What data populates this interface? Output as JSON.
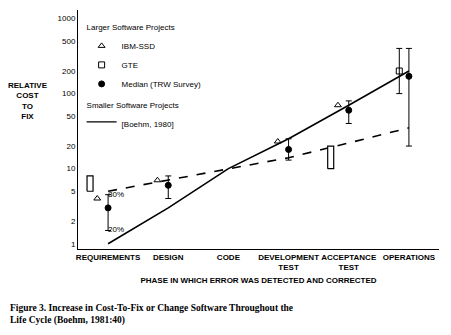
{
  "chart_data": {
    "type": "line",
    "caption": [
      "Figure 3. Increase in Cost-To-Fix or Change Software Throughout the",
      "Life Cycle (Boehm, 1981:40)"
    ],
    "x_label": "PHASE IN WHICH ERROR WAS DETECTED AND CORRECTED",
    "y_label": "RELATIVE COST TO FIX",
    "categories": [
      "REQUIREMENTS",
      "DESIGN",
      "CODE",
      "DEVELOPMENT TEST",
      "ACCEPTANCE TEST",
      "OPERATIONS"
    ],
    "log": "y",
    "ylim": [
      0.85,
      1300
    ],
    "yticks": [
      1,
      2,
      5,
      10,
      20,
      50,
      100,
      200,
      500,
      1000
    ],
    "grid": false,
    "legend": "top left",
    "series": [
      {
        "name": "Larger Software Projects",
        "type": "line",
        "line_style": "solid",
        "color": "#000000",
        "values": [
          1,
          3,
          10,
          25,
          70,
          200
        ]
      },
      {
        "name": "IBM-SSD",
        "group": "Larger Software Projects",
        "type": "scatter",
        "marker": "triangle-up-open",
        "color": "#000000",
        "values": [
          4,
          7,
          null,
          23,
          70,
          null
        ]
      },
      {
        "name": "GTE",
        "group": "Larger Software Projects",
        "type": "scatter",
        "marker": "square-open",
        "color": "#000000",
        "values": [
          null,
          null,
          null,
          null,
          null,
          200
        ],
        "low": [
          null,
          null,
          null,
          null,
          null,
          100
        ],
        "high": [
          null,
          null,
          null,
          null,
          null,
          400
        ]
      },
      {
        "name": "Median (TRW Survey)",
        "group": "Larger Software Projects",
        "type": "scatter",
        "marker": "circle",
        "color": "#000000",
        "values": [
          3,
          6,
          null,
          18,
          60,
          170
        ],
        "low": [
          1.5,
          4,
          null,
          13,
          40,
          20
        ],
        "high": [
          4.5,
          8,
          null,
          25,
          80,
          400
        ],
        "error_labels": {
          "high": "80%",
          "low": "20%"
        }
      },
      {
        "name": "Smaller Software Projects",
        "type": "line",
        "line_style": "dash",
        "color": "#000000",
        "values": [
          5,
          7,
          10,
          14,
          22,
          35
        ]
      },
      {
        "name": "[Boehm, 1980]",
        "group": "Smaller Software Projects",
        "type": "range",
        "color": "#000000",
        "low": [
          5,
          null,
          null,
          null,
          10,
          null
        ],
        "high": [
          8,
          null,
          null,
          null,
          20,
          null
        ]
      }
    ]
  }
}
